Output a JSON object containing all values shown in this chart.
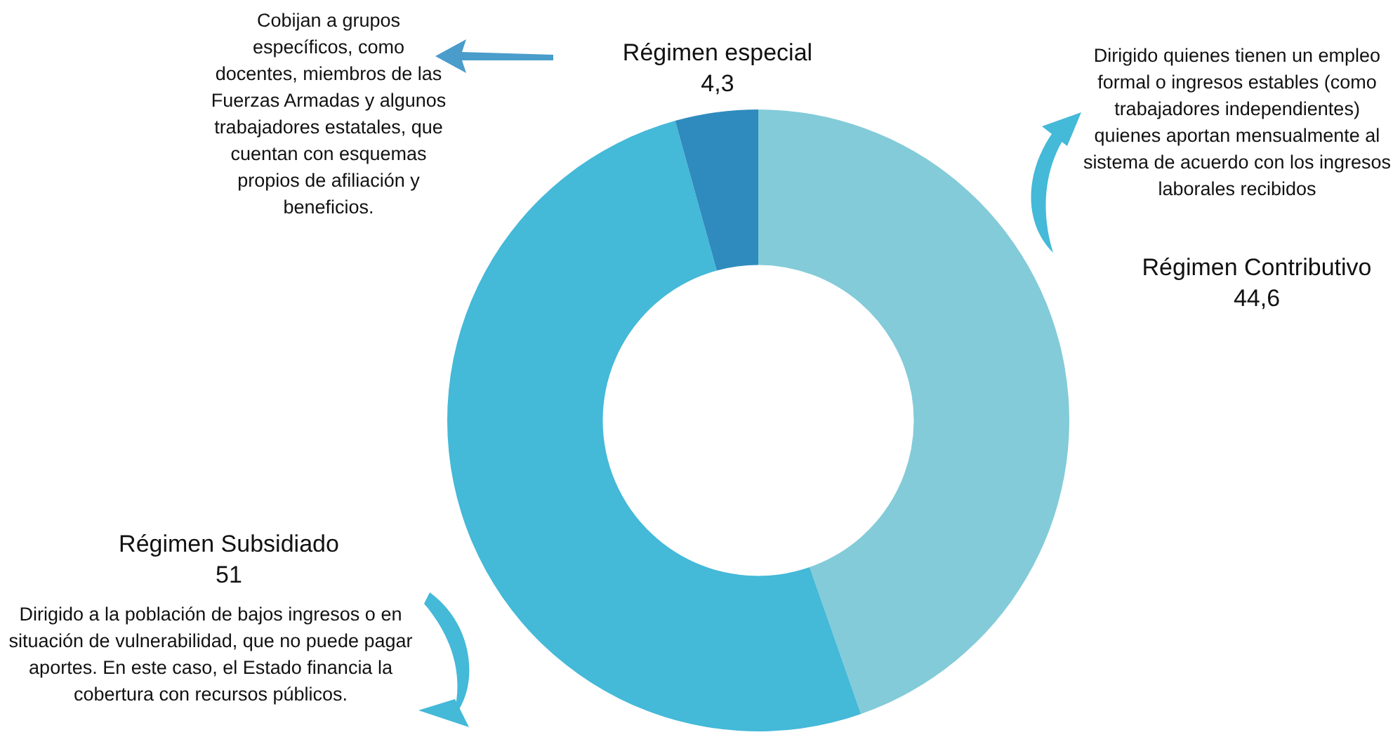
{
  "chart_data": {
    "type": "donut",
    "categories": [
      "Régimen Contributivo",
      "Régimen Subsidiado",
      "Régimen especial"
    ],
    "values": [
      44.6,
      51,
      4.3
    ],
    "value_labels": [
      "44,6",
      "51",
      "4,3"
    ],
    "colors": [
      "#83cbd8",
      "#44b9d8",
      "#2f8bbd"
    ],
    "legend": false,
    "annotations": [
      "Dirigido quienes tienen un empleo formal o ingresos estables (como trabajadores independientes) quienes aportan mensualmente al sistema de acuerdo con los ingresos laborales recibidos",
      "Dirigido a la población de bajos ingresos o en situación de vulnerabilidad, que no puede pagar aportes. En este caso, el Estado financia la cobertura con recursos públicos.",
      "Cobijan a grupos específicos, como docentes, miembros de las Fuerzas Armadas y algunos  trabajadores estatales, que cuentan con esquemas propios de afiliación y beneficios."
    ]
  }
}
